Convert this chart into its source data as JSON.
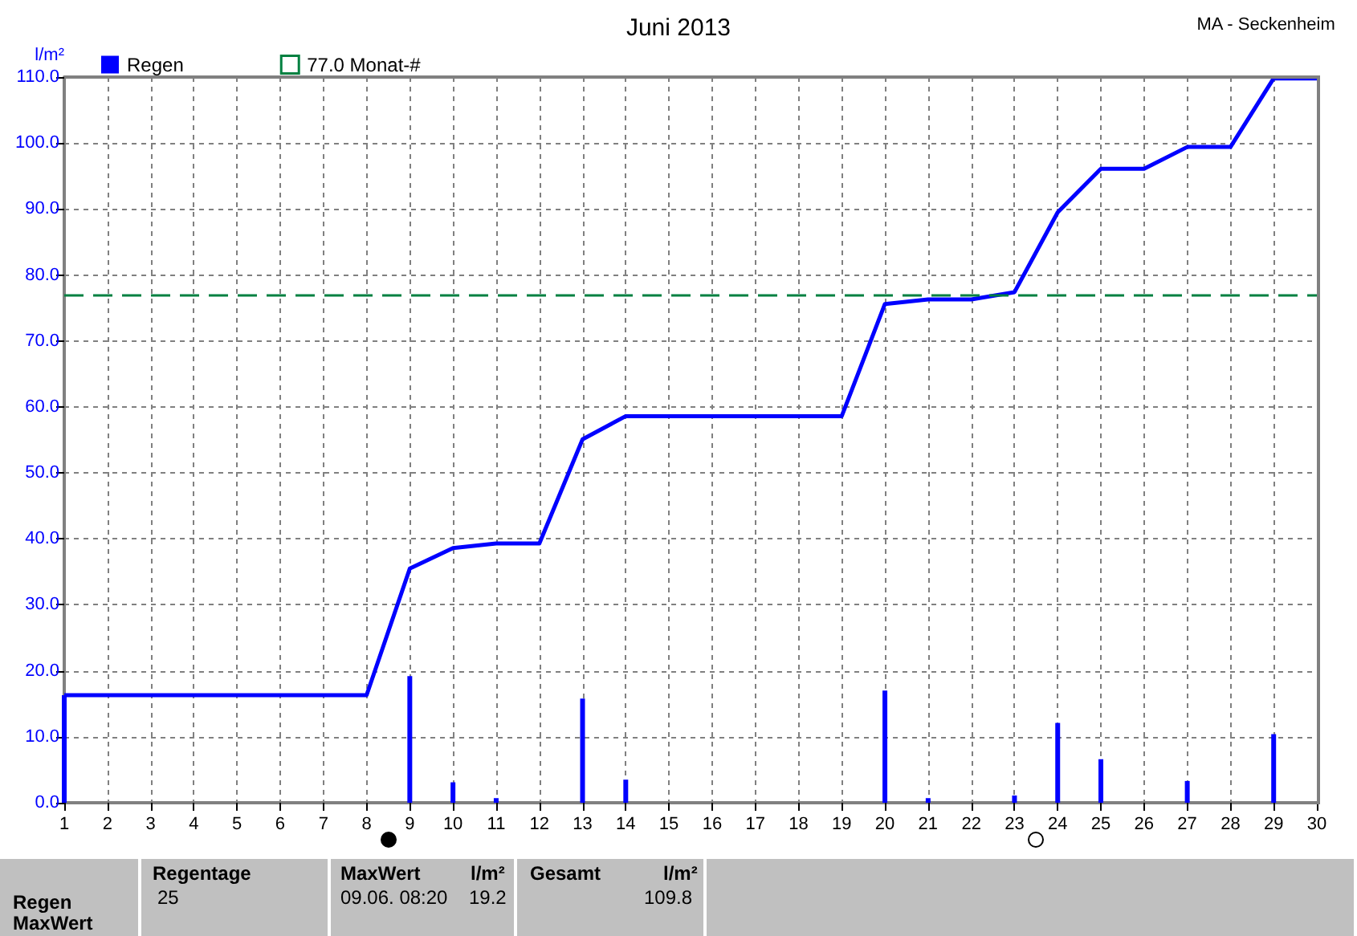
{
  "chart_data": {
    "type": "line",
    "title": "Juni 2013",
    "subtitle": "MA - Seckenheim",
    "ylabel": "l/m²",
    "xlim": [
      1,
      30
    ],
    "xticks": [
      1,
      2,
      3,
      4,
      5,
      6,
      7,
      8,
      9,
      10,
      11,
      12,
      13,
      14,
      15,
      16,
      17,
      18,
      19,
      20,
      21,
      22,
      23,
      24,
      25,
      26,
      27,
      28,
      29,
      30
    ],
    "ylim": [
      0,
      110
    ],
    "yticks": [
      {
        "value": 0,
        "label": "0.0"
      },
      {
        "value": 10,
        "label": "10.0"
      },
      {
        "value": 20,
        "label": "20.0"
      },
      {
        "value": 30,
        "label": "30.0"
      },
      {
        "value": 40,
        "label": "40.0"
      },
      {
        "value": 50,
        "label": "50.0"
      },
      {
        "value": 60,
        "label": "60.0"
      },
      {
        "value": 70,
        "label": "70.0"
      },
      {
        "value": 80,
        "label": "80.0"
      },
      {
        "value": 90,
        "label": "90.0"
      },
      {
        "value": 100,
        "label": "100.0"
      },
      {
        "value": 110,
        "label": "110.0"
      }
    ],
    "series": [
      {
        "type": "bar",
        "name": "Regen",
        "color": "#0000ff",
        "x": [
          1,
          9,
          10,
          11,
          13,
          14,
          20,
          21,
          23,
          24,
          25,
          27,
          29
        ],
        "values": [
          16.3,
          19.2,
          3.1,
          0.7,
          15.8,
          3.5,
          17.0,
          0.7,
          1.1,
          12.1,
          6.6,
          3.3,
          10.4
        ]
      },
      {
        "color": "#0000ff",
        "x": [
          1,
          2,
          3,
          4,
          5,
          6,
          7,
          8,
          9,
          10,
          11,
          12,
          13,
          14,
          15,
          16,
          17,
          18,
          19,
          20,
          21,
          22,
          23,
          24,
          25,
          26,
          27,
          28,
          29,
          30
        ],
        "values": [
          16.3,
          16.3,
          16.3,
          16.3,
          16.3,
          16.3,
          16.3,
          16.3,
          35.5,
          38.6,
          39.3,
          39.3,
          55.1,
          58.6,
          58.6,
          58.6,
          58.6,
          58.6,
          58.6,
          75.6,
          76.3,
          76.3,
          77.4,
          89.5,
          96.1,
          96.1,
          99.4,
          99.4,
          109.8,
          109.8
        ]
      }
    ],
    "ref_lines": [
      {
        "axis": "y",
        "value": 77.0,
        "label": "77.0 Monat-#",
        "color": "#008040",
        "line_style": "dashed"
      }
    ],
    "grid": true,
    "legend": "top left",
    "marker": "none",
    "annotations": [
      "Regen",
      "MaxWert",
      "Regentage",
      "25",
      "MaxWert",
      "l/m²",
      "09.06.  08:20",
      "19.2",
      "Gesamt",
      "l/m²",
      "109.8"
    ]
  }
}
